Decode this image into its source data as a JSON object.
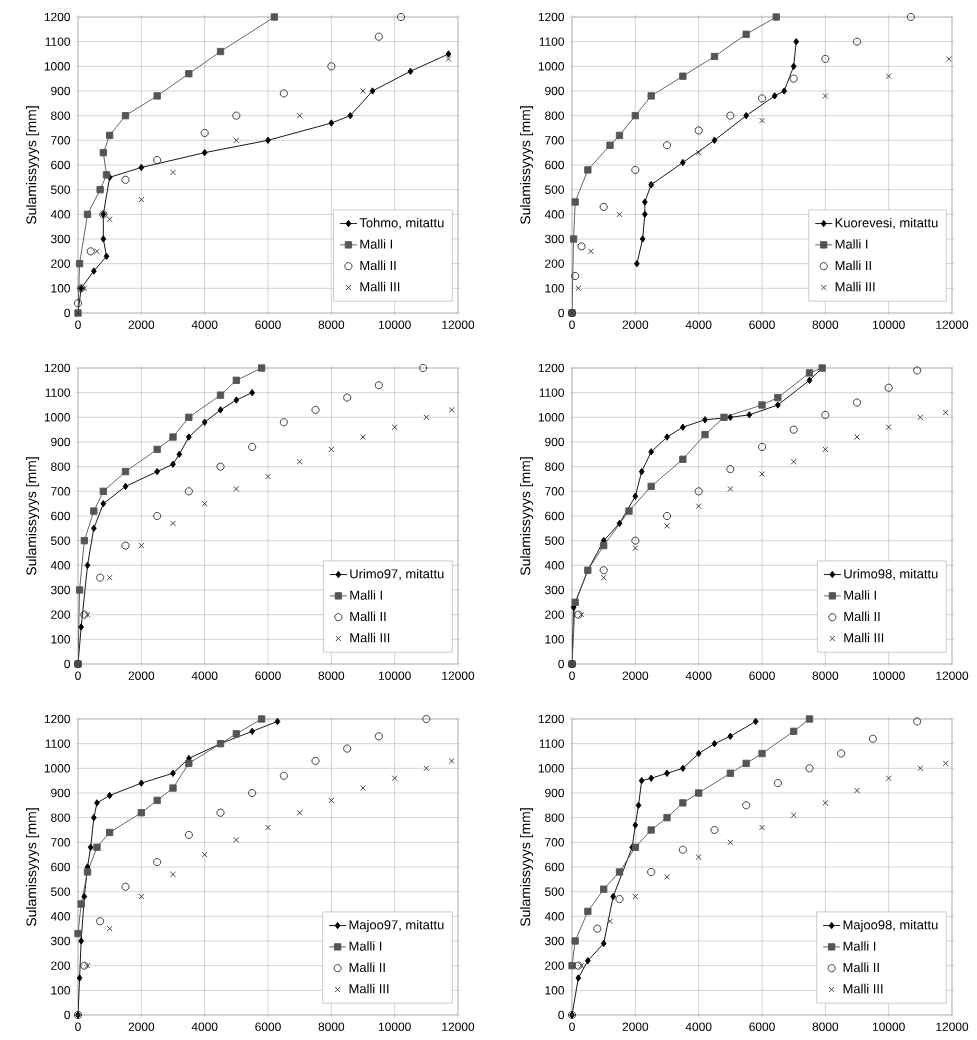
{
  "chart_data": [
    {
      "type": "line",
      "ylabel": "Sulamissyyys [mm]",
      "xlim": [
        0,
        12000
      ],
      "ylim": [
        0,
        1200
      ],
      "xticks": [
        0,
        2000,
        4000,
        6000,
        8000,
        10000,
        12000
      ],
      "yticks": [
        0,
        100,
        200,
        300,
        400,
        500,
        600,
        700,
        800,
        900,
        1000,
        1100,
        1200
      ],
      "grid": true,
      "legend": "bottom right",
      "series": [
        {
          "name": "Tohmo, mitattu",
          "marker": "diamond",
          "color": "#000000",
          "x": [
            0,
            100,
            500,
            900,
            800,
            800,
            1000,
            2000,
            4000,
            6000,
            8000,
            8600,
            9300,
            10500,
            11700
          ],
          "values": [
            0,
            100,
            170,
            230,
            300,
            400,
            550,
            590,
            650,
            700,
            770,
            800,
            900,
            980,
            1050
          ]
        },
        {
          "name": "Malli I",
          "type": "line",
          "marker": "square",
          "color": "#555555",
          "x": [
            0,
            50,
            300,
            700,
            900,
            800,
            1000,
            1500,
            2500,
            3500,
            4500,
            6200
          ],
          "values": [
            0,
            200,
            400,
            500,
            560,
            650,
            720,
            800,
            880,
            970,
            1060,
            1200
          ]
        },
        {
          "name": "Malli II",
          "type": "scatter",
          "marker": "circle",
          "color": "#26264d",
          "x": [
            0,
            100,
            400,
            800,
            1500,
            2500,
            4000,
            5000,
            6500,
            8000,
            9500,
            10200
          ],
          "values": [
            40,
            100,
            250,
            400,
            540,
            620,
            730,
            800,
            890,
            1000,
            1120,
            1200
          ]
        },
        {
          "name": "Malli III",
          "type": "scatter",
          "marker": "cross",
          "color": "#333333",
          "x": [
            0,
            200,
            600,
            1000,
            2000,
            3000,
            5000,
            7000,
            9000,
            11700
          ],
          "values": [
            0,
            100,
            250,
            380,
            460,
            570,
            700,
            800,
            900,
            1030
          ]
        }
      ]
    },
    {
      "type": "line",
      "ylabel": "Sulamissyyys [mm]",
      "xlim": [
        0,
        12000
      ],
      "ylim": [
        0,
        1200
      ],
      "xticks": [
        0,
        2000,
        4000,
        6000,
        8000,
        10000,
        12000
      ],
      "yticks": [
        0,
        100,
        200,
        300,
        400,
        500,
        600,
        700,
        800,
        900,
        1000,
        1100,
        1200
      ],
      "grid": true,
      "legend": "bottom right",
      "series": [
        {
          "name": "Kuorevesi, mitattu",
          "marker": "diamond",
          "color": "#000000",
          "x": [
            2050,
            2230,
            2300,
            2300,
            2500,
            3500,
            4500,
            5500,
            6400,
            6700,
            7000,
            7080
          ],
          "values": [
            200,
            300,
            400,
            450,
            520,
            610,
            700,
            800,
            880,
            900,
            1000,
            1100
          ]
        },
        {
          "name": "Malli I",
          "type": "line",
          "marker": "square",
          "color": "#555555",
          "x": [
            0,
            50,
            100,
            500,
            1200,
            1500,
            2000,
            2500,
            3500,
            4500,
            5500,
            6450
          ],
          "values": [
            0,
            300,
            450,
            580,
            680,
            720,
            800,
            880,
            960,
            1040,
            1130,
            1200
          ]
        },
        {
          "name": "Malli II",
          "type": "scatter",
          "marker": "circle",
          "color": "#26264d",
          "x": [
            0,
            100,
            300,
            1000,
            2000,
            3000,
            4000,
            5000,
            6000,
            7000,
            8000,
            9000,
            10700
          ],
          "values": [
            0,
            150,
            270,
            430,
            580,
            680,
            740,
            800,
            870,
            950,
            1030,
            1100,
            1200
          ]
        },
        {
          "name": "Malli III",
          "type": "scatter",
          "marker": "cross",
          "color": "#333333",
          "x": [
            0,
            200,
            600,
            1500,
            2500,
            4000,
            6000,
            8000,
            10000,
            11900
          ],
          "values": [
            0,
            100,
            250,
            400,
            520,
            650,
            780,
            880,
            960,
            1030
          ]
        }
      ]
    },
    {
      "type": "line",
      "ylabel": "Sulamissyyys [mm]",
      "xlim": [
        0,
        12000
      ],
      "ylim": [
        0,
        1200
      ],
      "xticks": [
        0,
        2000,
        4000,
        6000,
        8000,
        10000,
        12000
      ],
      "yticks": [
        0,
        100,
        200,
        300,
        400,
        500,
        600,
        700,
        800,
        900,
        1000,
        1100,
        1200
      ],
      "grid": true,
      "legend": "bottom right",
      "series": [
        {
          "name": "Urimo97, mitattu",
          "marker": "diamond",
          "color": "#000000",
          "x": [
            0,
            100,
            300,
            500,
            800,
            1500,
            2500,
            3000,
            3200,
            3500,
            4000,
            4500,
            5000,
            5500
          ],
          "values": [
            0,
            150,
            400,
            550,
            650,
            720,
            780,
            810,
            850,
            920,
            980,
            1030,
            1070,
            1100
          ]
        },
        {
          "name": "Malli I",
          "type": "line",
          "marker": "square",
          "color": "#555555",
          "x": [
            0,
            50,
            200,
            500,
            800,
            1500,
            2500,
            3000,
            3500,
            4500,
            5000,
            5800
          ],
          "values": [
            0,
            300,
            500,
            620,
            700,
            780,
            870,
            920,
            1000,
            1090,
            1150,
            1200
          ]
        },
        {
          "name": "Malli II",
          "type": "scatter",
          "marker": "circle",
          "color": "#26264d",
          "x": [
            0,
            200,
            700,
            1500,
            2500,
            3500,
            4500,
            5500,
            6500,
            7500,
            8500,
            9500,
            10900
          ],
          "values": [
            0,
            200,
            350,
            480,
            600,
            700,
            800,
            880,
            980,
            1030,
            1080,
            1130,
            1200
          ]
        },
        {
          "name": "Malli III",
          "type": "scatter",
          "marker": "cross",
          "color": "#333333",
          "x": [
            0,
            300,
            1000,
            2000,
            3000,
            4000,
            5000,
            6000,
            7000,
            8000,
            9000,
            10000,
            11000,
            11800
          ],
          "values": [
            0,
            200,
            350,
            480,
            570,
            650,
            710,
            760,
            820,
            870,
            920,
            960,
            1000,
            1030
          ]
        }
      ]
    },
    {
      "type": "line",
      "ylabel": "Sulamissyyys [mm]",
      "xlim": [
        0,
        12000
      ],
      "ylim": [
        0,
        1200
      ],
      "xticks": [
        0,
        2000,
        4000,
        6000,
        8000,
        10000,
        12000
      ],
      "yticks": [
        0,
        100,
        200,
        300,
        400,
        500,
        600,
        700,
        800,
        900,
        1000,
        1100,
        1200
      ],
      "grid": true,
      "legend": "bottom right",
      "series": [
        {
          "name": "Urimo98, mitattu",
          "marker": "diamond",
          "color": "#000000",
          "x": [
            0,
            50,
            500,
            1000,
            1500,
            2000,
            2200,
            2500,
            3000,
            3500,
            4200,
            5000,
            5600,
            6500,
            7500,
            7900
          ],
          "values": [
            0,
            230,
            380,
            500,
            570,
            680,
            780,
            860,
            920,
            960,
            990,
            1000,
            1010,
            1050,
            1150,
            1200
          ]
        },
        {
          "name": "Malli I",
          "type": "line",
          "marker": "square",
          "color": "#555555",
          "x": [
            0,
            100,
            500,
            1000,
            1800,
            2500,
            3500,
            4200,
            4800,
            6000,
            6500,
            7500,
            7900
          ],
          "values": [
            0,
            250,
            380,
            480,
            620,
            720,
            830,
            930,
            1000,
            1050,
            1080,
            1180,
            1200
          ]
        },
        {
          "name": "Malli II",
          "type": "scatter",
          "marker": "circle",
          "color": "#26264d",
          "x": [
            0,
            200,
            1000,
            2000,
            3000,
            4000,
            5000,
            6000,
            7000,
            8000,
            9000,
            10000,
            10900
          ],
          "values": [
            0,
            200,
            380,
            500,
            600,
            700,
            790,
            880,
            950,
            1010,
            1060,
            1120,
            1190
          ]
        },
        {
          "name": "Malli III",
          "type": "scatter",
          "marker": "cross",
          "color": "#333333",
          "x": [
            0,
            300,
            1000,
            2000,
            3000,
            4000,
            5000,
            6000,
            7000,
            8000,
            9000,
            10000,
            11000,
            11800
          ],
          "values": [
            0,
            200,
            350,
            470,
            560,
            640,
            710,
            770,
            820,
            870,
            920,
            960,
            1000,
            1020
          ]
        }
      ]
    },
    {
      "type": "line",
      "ylabel": "Sulamissyyys [mm]",
      "xlim": [
        0,
        12000
      ],
      "ylim": [
        0,
        1200
      ],
      "xticks": [
        0,
        2000,
        4000,
        6000,
        8000,
        10000,
        12000
      ],
      "yticks": [
        0,
        100,
        200,
        300,
        400,
        500,
        600,
        700,
        800,
        900,
        1000,
        1100,
        1200
      ],
      "grid": true,
      "legend": "bottom right",
      "series": [
        {
          "name": "Majoo97, mitattu",
          "marker": "diamond",
          "color": "#000000",
          "x": [
            0,
            50,
            100,
            200,
            300,
            400,
            500,
            600,
            1000,
            2000,
            3000,
            3500,
            4500,
            5500,
            6300
          ],
          "values": [
            0,
            150,
            300,
            480,
            600,
            680,
            800,
            860,
            890,
            940,
            980,
            1040,
            1100,
            1150,
            1190
          ]
        },
        {
          "name": "Malli I",
          "type": "line",
          "marker": "square",
          "color": "#555555",
          "x": [
            0,
            100,
            300,
            600,
            1000,
            2000,
            2500,
            3000,
            3500,
            4500,
            5000,
            5800
          ],
          "values": [
            330,
            450,
            580,
            680,
            740,
            820,
            870,
            920,
            1020,
            1100,
            1140,
            1200
          ]
        },
        {
          "name": "Malli II",
          "type": "scatter",
          "marker": "circle",
          "color": "#26264d",
          "x": [
            0,
            200,
            700,
            1500,
            2500,
            3500,
            4500,
            5500,
            6500,
            7500,
            8500,
            9500,
            11000
          ],
          "values": [
            0,
            200,
            380,
            520,
            620,
            730,
            820,
            900,
            970,
            1030,
            1080,
            1130,
            1200
          ]
        },
        {
          "name": "Malli III",
          "type": "scatter",
          "marker": "cross",
          "color": "#333333",
          "x": [
            0,
            300,
            1000,
            2000,
            3000,
            4000,
            5000,
            6000,
            7000,
            8000,
            9000,
            10000,
            11000,
            11800
          ],
          "values": [
            0,
            200,
            350,
            480,
            570,
            650,
            710,
            760,
            820,
            870,
            920,
            960,
            1000,
            1030
          ]
        }
      ]
    },
    {
      "type": "line",
      "ylabel": "Sulamissyyys [mm]",
      "xlim": [
        0,
        12000
      ],
      "ylim": [
        0,
        1200
      ],
      "xticks": [
        0,
        2000,
        4000,
        6000,
        8000,
        10000,
        12000
      ],
      "yticks": [
        0,
        100,
        200,
        300,
        400,
        500,
        600,
        700,
        800,
        900,
        1000,
        1100,
        1200
      ],
      "grid": true,
      "legend": "bottom right",
      "series": [
        {
          "name": "Majoo98, mitattu",
          "marker": "diamond",
          "color": "#000000",
          "x": [
            0,
            200,
            500,
            1000,
            1300,
            1900,
            2000,
            2100,
            2200,
            2500,
            3000,
            3500,
            4000,
            4500,
            5000,
            5800
          ],
          "values": [
            0,
            150,
            220,
            290,
            480,
            680,
            770,
            850,
            950,
            960,
            980,
            1000,
            1060,
            1100,
            1130,
            1190
          ]
        },
        {
          "name": "Malli I",
          "type": "line",
          "marker": "square",
          "color": "#555555",
          "x": [
            0,
            100,
            500,
            1000,
            1500,
            2000,
            2500,
            3000,
            3500,
            4000,
            5000,
            5500,
            6000,
            7000,
            7500
          ],
          "values": [
            200,
            300,
            420,
            510,
            580,
            680,
            750,
            800,
            860,
            900,
            980,
            1020,
            1060,
            1150,
            1200
          ]
        },
        {
          "name": "Malli II",
          "type": "scatter",
          "marker": "circle",
          "color": "#26264d",
          "x": [
            0,
            200,
            800,
            1500,
            2500,
            3500,
            4500,
            5500,
            6500,
            7500,
            8500,
            9500,
            10900
          ],
          "values": [
            0,
            200,
            350,
            470,
            580,
            670,
            750,
            850,
            940,
            1000,
            1060,
            1120,
            1190
          ]
        },
        {
          "name": "Malli III",
          "type": "scatter",
          "marker": "cross",
          "color": "#333333",
          "x": [
            0,
            300,
            1200,
            2000,
            3000,
            4000,
            5000,
            6000,
            7000,
            8000,
            9000,
            10000,
            11000,
            11800
          ],
          "values": [
            0,
            200,
            380,
            480,
            560,
            640,
            700,
            760,
            810,
            860,
            910,
            960,
            1000,
            1020
          ]
        }
      ]
    }
  ]
}
